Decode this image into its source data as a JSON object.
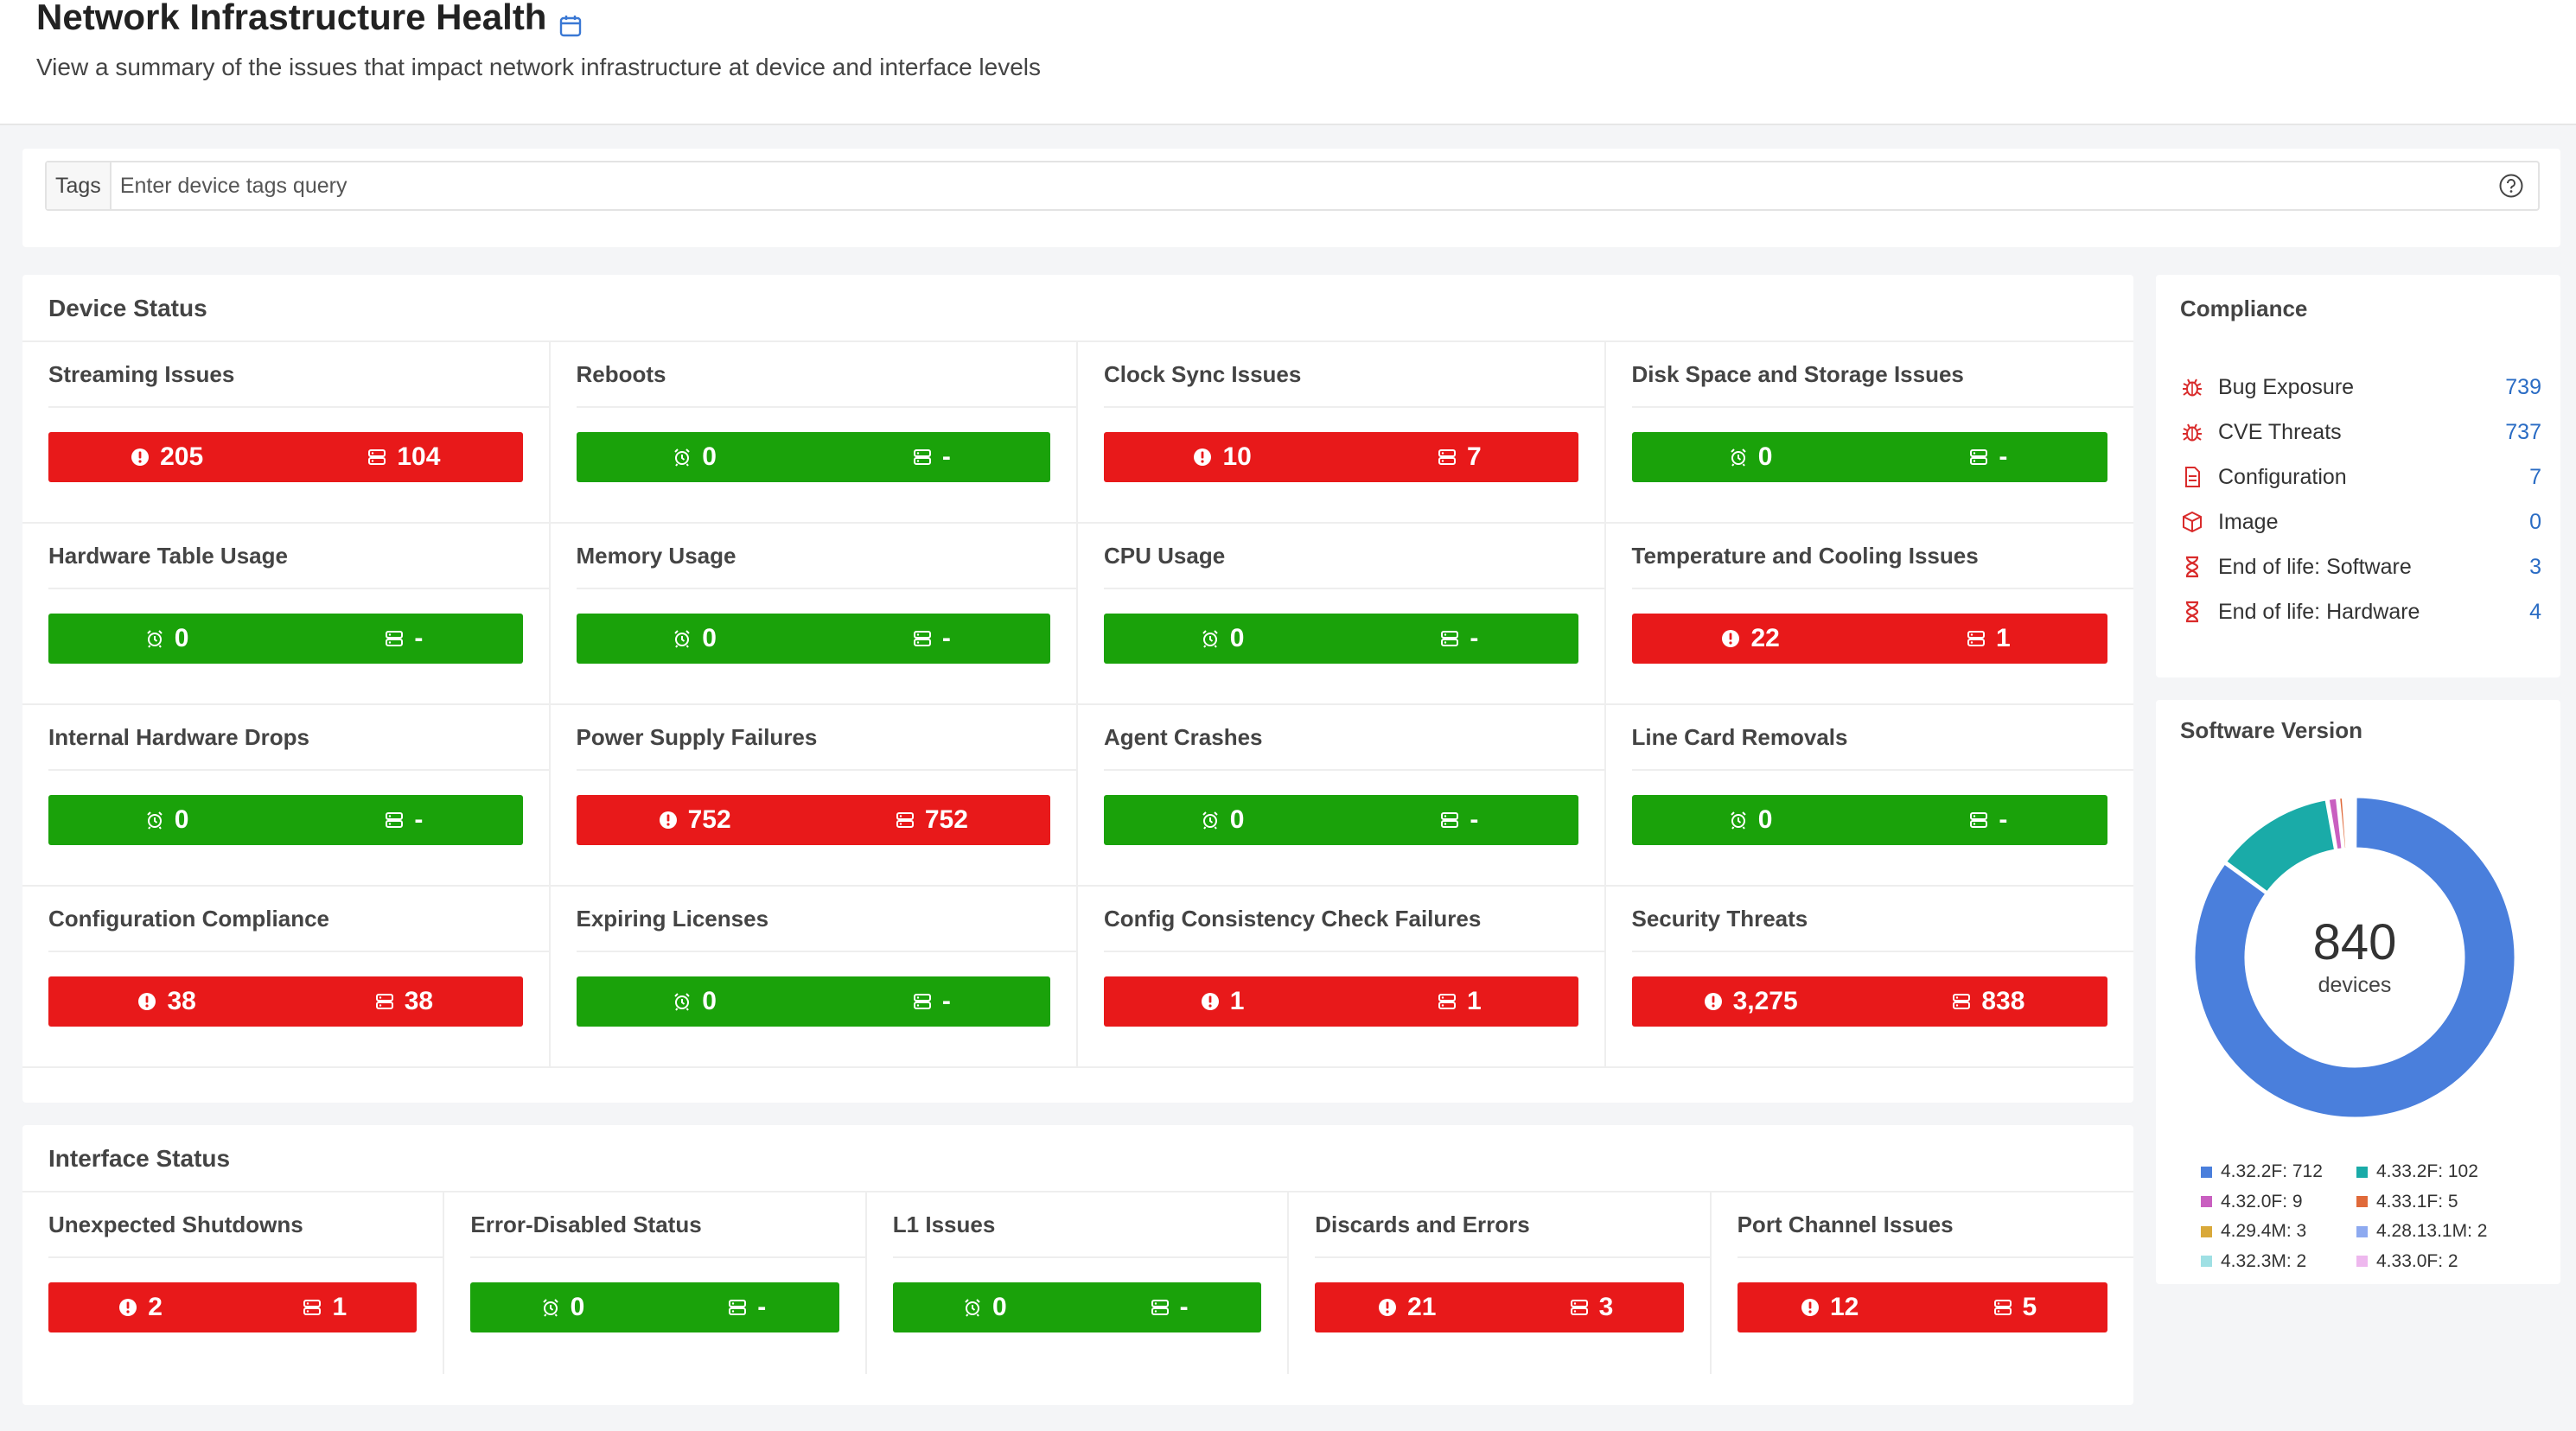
{
  "header": {
    "title": "Network Infrastructure Health",
    "subtitle": "View a summary of the issues that impact network infrastructure at device and interface levels"
  },
  "tags": {
    "label": "Tags",
    "placeholder": "Enter device tags query"
  },
  "device_status": {
    "title": "Device Status",
    "cells": [
      {
        "label": "Streaming Issues",
        "status": "red",
        "left": "205",
        "right": "104"
      },
      {
        "label": "Reboots",
        "status": "green",
        "left": "0",
        "right": "-"
      },
      {
        "label": "Clock Sync Issues",
        "status": "red",
        "left": "10",
        "right": "7"
      },
      {
        "label": "Disk Space and Storage Issues",
        "status": "green",
        "left": "0",
        "right": "-"
      },
      {
        "label": "Hardware Table Usage",
        "status": "green",
        "left": "0",
        "right": "-"
      },
      {
        "label": "Memory Usage",
        "status": "green",
        "left": "0",
        "right": "-"
      },
      {
        "label": "CPU Usage",
        "status": "green",
        "left": "0",
        "right": "-"
      },
      {
        "label": "Temperature and Cooling Issues",
        "status": "red",
        "left": "22",
        "right": "1"
      },
      {
        "label": "Internal Hardware Drops",
        "status": "green",
        "left": "0",
        "right": "-"
      },
      {
        "label": "Power Supply Failures",
        "status": "red",
        "left": "752",
        "right": "752"
      },
      {
        "label": "Agent Crashes",
        "status": "green",
        "left": "0",
        "right": "-"
      },
      {
        "label": "Line Card Removals",
        "status": "green",
        "left": "0",
        "right": "-"
      },
      {
        "label": "Configuration Compliance",
        "status": "red",
        "left": "38",
        "right": "38"
      },
      {
        "label": "Expiring Licenses",
        "status": "green",
        "left": "0",
        "right": "-"
      },
      {
        "label": "Config Consistency Check Failures",
        "status": "red",
        "left": "1",
        "right": "1"
      },
      {
        "label": "Security Threats",
        "status": "red",
        "left": "3,275",
        "right": "838"
      }
    ]
  },
  "interface_status": {
    "title": "Interface Status",
    "cells": [
      {
        "label": "Unexpected Shutdowns",
        "status": "red",
        "left": "2",
        "right": "1"
      },
      {
        "label": "Error-Disabled Status",
        "status": "green",
        "left": "0",
        "right": "-"
      },
      {
        "label": "L1 Issues",
        "status": "green",
        "left": "0",
        "right": "-"
      },
      {
        "label": "Discards and Errors",
        "status": "red",
        "left": "21",
        "right": "3"
      },
      {
        "label": "Port Channel Issues",
        "status": "red",
        "left": "12",
        "right": "5"
      }
    ]
  },
  "compliance": {
    "title": "Compliance",
    "items": [
      {
        "label": "Bug Exposure",
        "value": "739",
        "icon": "bug-icon"
      },
      {
        "label": "CVE Threats",
        "value": "737",
        "icon": "bug-icon"
      },
      {
        "label": "Configuration",
        "value": "7",
        "icon": "document-icon"
      },
      {
        "label": "Image",
        "value": "0",
        "icon": "cube-icon"
      },
      {
        "label": "End of life: Software",
        "value": "3",
        "icon": "hourglass-icon"
      },
      {
        "label": "End of life: Hardware",
        "value": "4",
        "icon": "hourglass-icon"
      }
    ]
  },
  "software_version": {
    "title": "Software Version",
    "total": "840",
    "unit": "devices",
    "legend": [
      {
        "label": "4.32.2F: 712",
        "color": "#4a7fdc"
      },
      {
        "label": "4.33.2F: 102",
        "color": "#1aaba8"
      },
      {
        "label": "4.32.0F: 9",
        "color": "#c95fc0"
      },
      {
        "label": "4.33.1F: 5",
        "color": "#e06a3a"
      },
      {
        "label": "4.29.4M: 3",
        "color": "#d9a93a"
      },
      {
        "label": "4.28.13.1M: 2",
        "color": "#8eaaf0"
      },
      {
        "label": "4.32.3M: 2",
        "color": "#9fe0e4"
      },
      {
        "label": "4.33.0F: 2",
        "color": "#eeb8ee"
      }
    ]
  },
  "chart_data": {
    "type": "pie",
    "categories": [
      "4.32.2F",
      "4.33.2F",
      "4.32.0F",
      "4.33.1F",
      "4.29.4M",
      "4.28.13.1M",
      "4.32.3M",
      "4.33.0F"
    ],
    "values": [
      712,
      102,
      9,
      5,
      3,
      2,
      2,
      2
    ],
    "colors": [
      "#4a7fdc",
      "#1aaba8",
      "#c95fc0",
      "#e06a3a",
      "#d9a93a",
      "#8eaaf0",
      "#9fe0e4",
      "#eeb8ee"
    ],
    "title": "Software Version"
  }
}
